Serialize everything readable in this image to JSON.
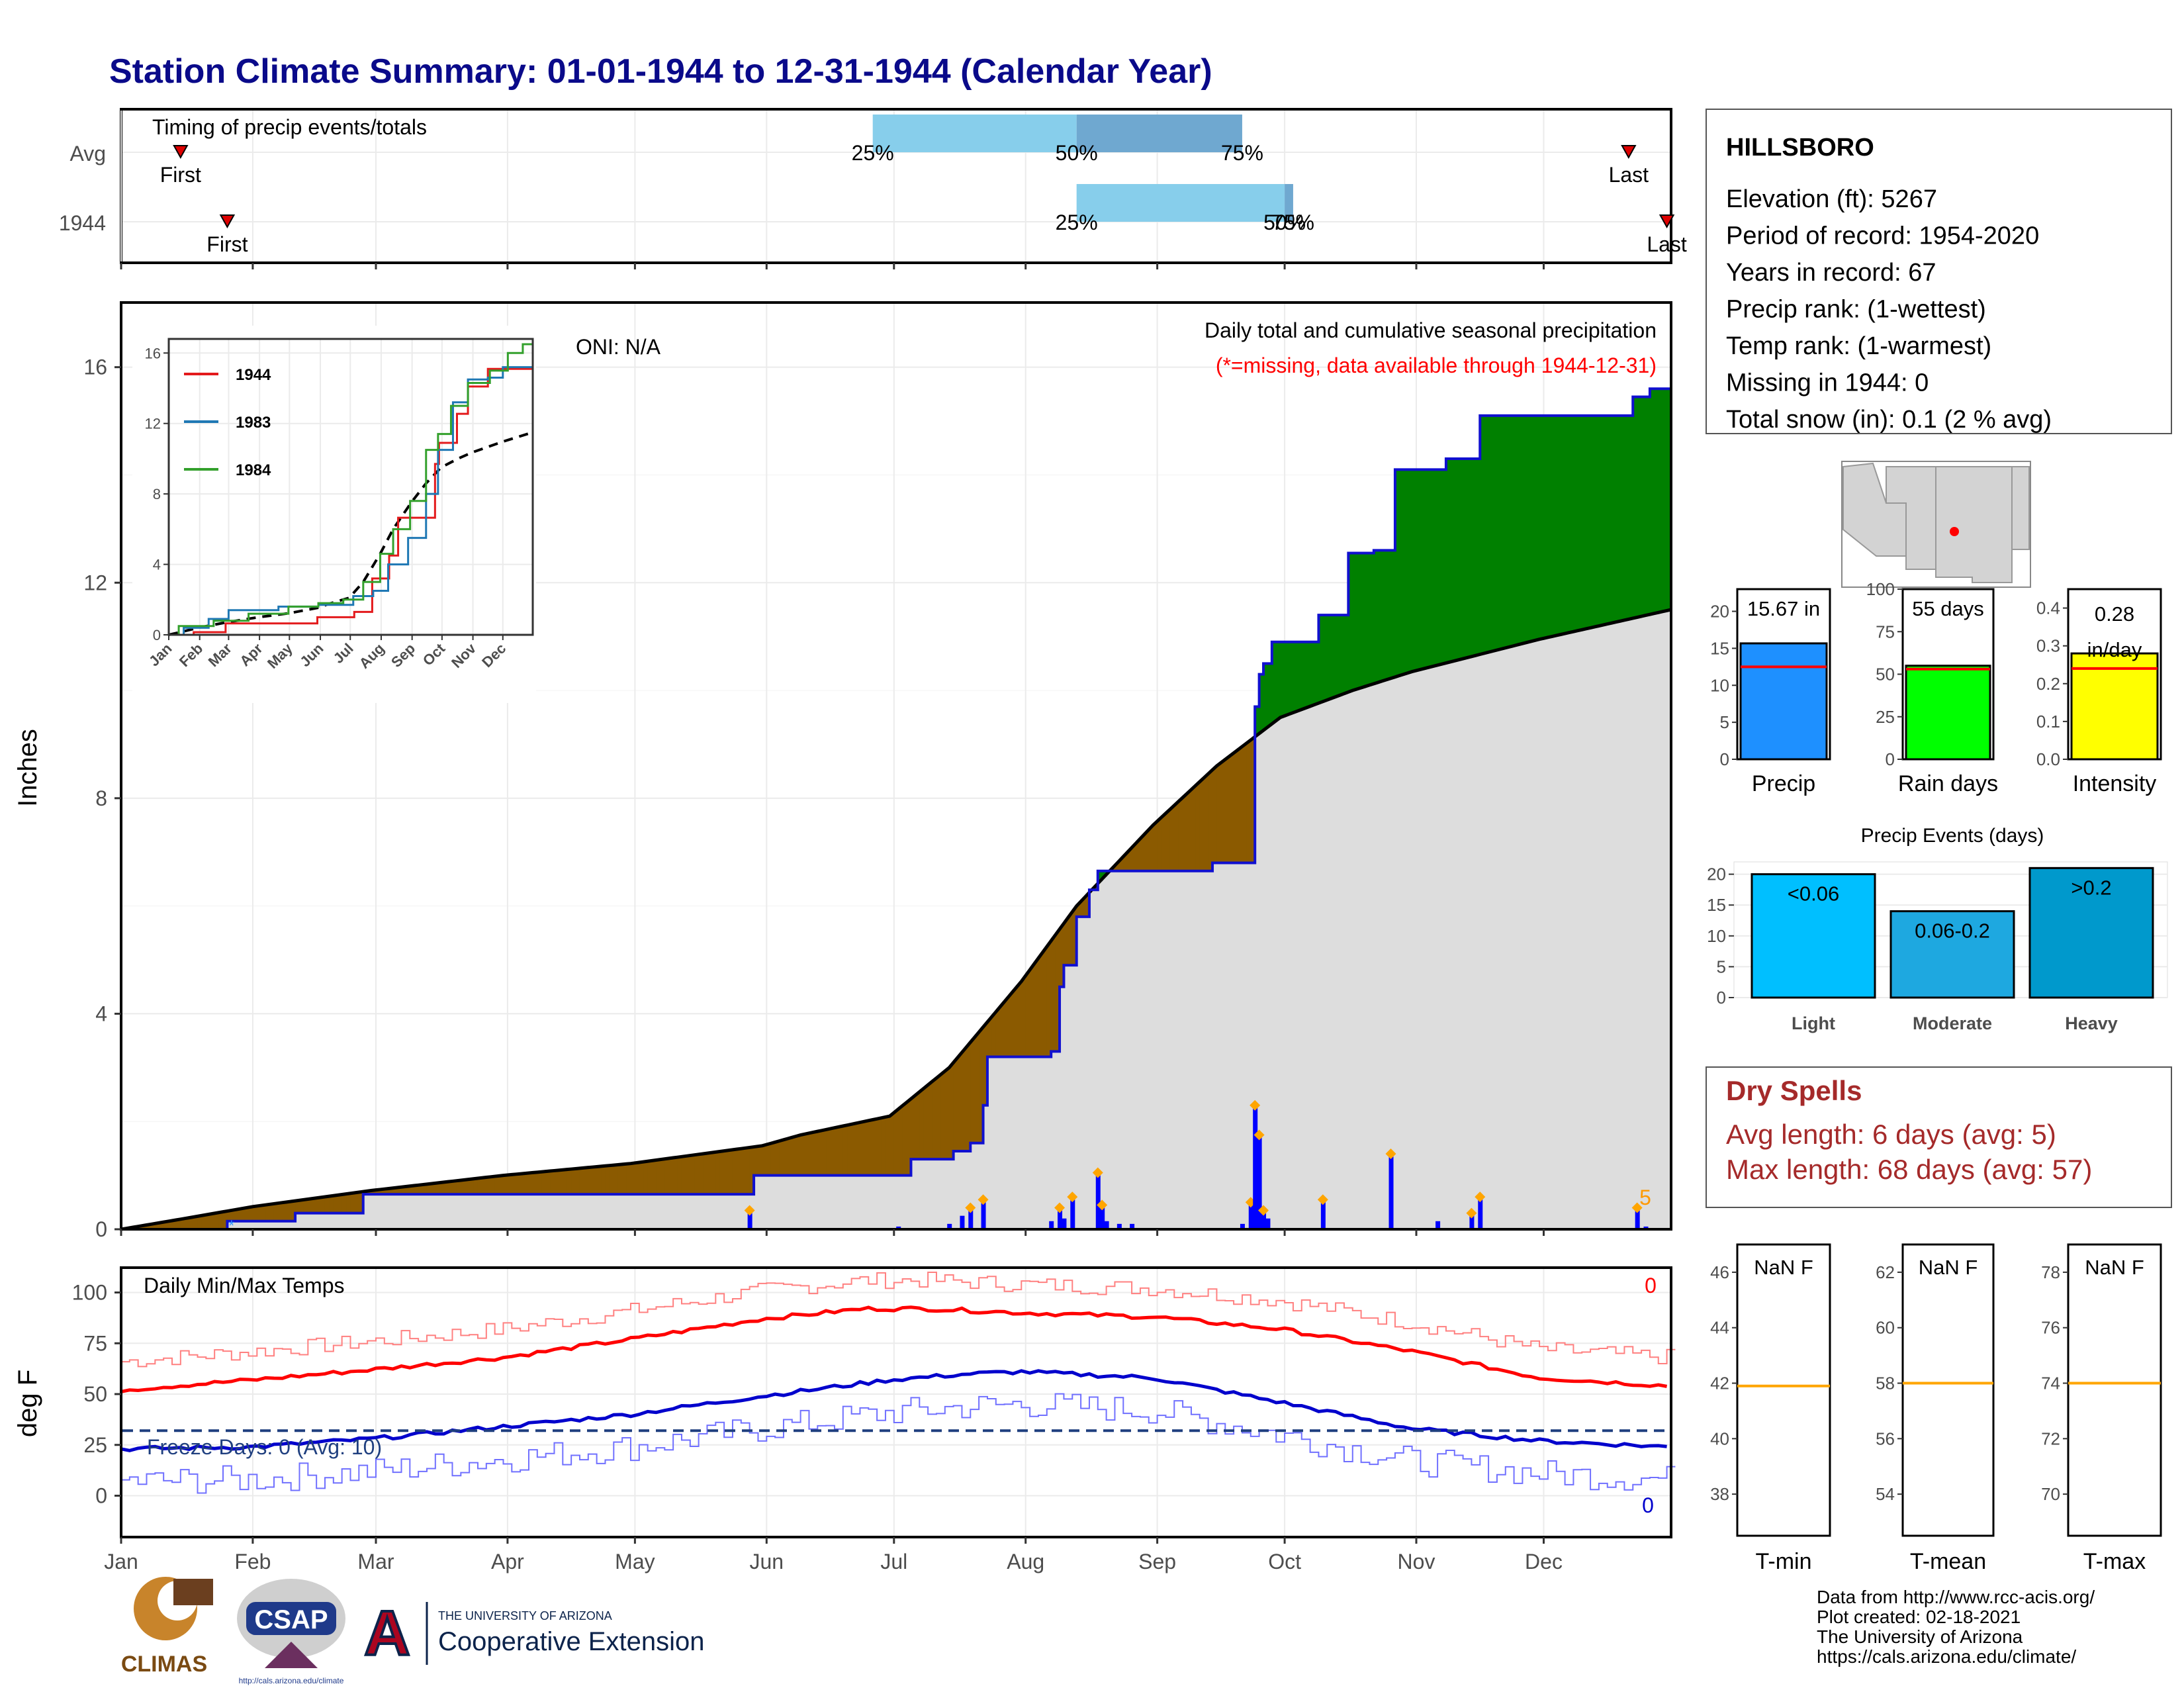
{
  "title": "Station Climate Summary: 01-01-1944 to 12-31-1944 (Calendar Year)",
  "colors": {
    "title": "#0a0a8a",
    "cumulative": "#1010d0",
    "above_avg": "#008000",
    "below_avg": "#8b5a00",
    "normal": "#dddddd",
    "tmax": "#ff0000",
    "tmin": "#0000cc",
    "freeze": "#1f3f7f",
    "dry": "#a52a2a"
  },
  "timing": {
    "title": "Timing of precip events/totals",
    "rows": [
      "Avg",
      "1944"
    ],
    "avg": {
      "first": "First",
      "last": "Last",
      "q25": "25%",
      "q50": "50%",
      "q75": "75%",
      "first_doy": 14,
      "last_doy": 355,
      "q25_doy": 177,
      "q50_doy": 225,
      "q75_doy": 264
    },
    "y1944": {
      "first": "First",
      "last": "Last",
      "q25": "25%",
      "q50": "50%",
      "q75": "75%",
      "first_doy": 25,
      "last_doy": 364,
      "q25_doy": 225,
      "q50_doy": 274,
      "q75_doy": 276
    }
  },
  "precip_panel": {
    "ylabel": "Inches",
    "oni": "ONI: N/A",
    "header1": "Daily total and cumulative seasonal precipitation",
    "header2": "(*=missing, data available through 1944-12-31)",
    "top_right_count": "5",
    "yticks": [
      "0",
      "4",
      "8",
      "12",
      "16"
    ]
  },
  "months": [
    "Jan",
    "Feb",
    "Mar",
    "Apr",
    "May",
    "Jun",
    "Jul",
    "Aug",
    "Sep",
    "Oct",
    "Nov",
    "Dec"
  ],
  "inset": {
    "legend": [
      "1944",
      "1983",
      "1984"
    ],
    "legend_colors": [
      "#e31a1c",
      "#1f78b4",
      "#33a02c"
    ],
    "yticks": [
      "0",
      "4",
      "8",
      "12",
      "16"
    ]
  },
  "temp_panel": {
    "ylabel": "deg F",
    "title": "Daily Min/Max Temps",
    "freeze": "Freeze Days: 0 (Avg: 10)",
    "max_count": "0",
    "min_count": "0",
    "yticks": [
      "0",
      "25",
      "50",
      "75",
      "100"
    ]
  },
  "station": {
    "name": "HILLSBORO",
    "lines": [
      "Elevation (ft): 5267",
      "Period of record: 1954-2020",
      "Years in record: 67",
      "Precip rank:  (1-wettest)",
      "Temp rank:  (1-warmest)",
      "Missing in 1944: 0",
      "Total snow (in): 0.1 (2 % avg)"
    ]
  },
  "summary_bars": [
    {
      "label": "Precip",
      "value_text": "15.67 in",
      "value": 15.67,
      "avg": 12.5,
      "ymax": 23,
      "ticks": [
        "0",
        "5",
        "10",
        "15",
        "20"
      ],
      "color": "#1e90ff"
    },
    {
      "label": "Rain days",
      "value_text": "55 days",
      "value": 55,
      "avg": 53,
      "ymax": 100,
      "ticks": [
        "0",
        "25",
        "50",
        "75",
        "100"
      ],
      "color": "#00ff00"
    },
    {
      "label": "Intensity",
      "value_text": "0.28 in/day",
      "value": 0.28,
      "avg": 0.24,
      "ymax": 0.45,
      "ticks": [
        "0.0",
        "0.1",
        "0.2",
        "0.3",
        "0.4"
      ],
      "color": "#ffff00"
    }
  ],
  "events": {
    "title": "Precip Events (days)",
    "ticks": [
      "0",
      "5",
      "10",
      "15",
      "20"
    ],
    "bars": [
      {
        "cat": "Light",
        "label": "<0.06",
        "value": 20,
        "color": "#00bfff"
      },
      {
        "cat": "Moderate",
        "label": "0.06-0.2",
        "value": 14,
        "color": "#1ea8e0"
      },
      {
        "cat": "Heavy",
        "label": ">0.2",
        "value": 21,
        "color": "#0099cc"
      }
    ]
  },
  "dry_spells": {
    "title": "Dry Spells",
    "avg": "Avg length: 6 days (avg: 5)",
    "max": "Max length: 68 days (avg: 57)"
  },
  "temp_boxes": [
    {
      "label": "T-min",
      "value": "NaN F",
      "ticks": [
        "38",
        "40",
        "42",
        "44",
        "46"
      ],
      "line": 41.9,
      "min": 36.5,
      "max": 47
    },
    {
      "label": "T-mean",
      "value": "NaN F",
      "ticks": [
        "54",
        "56",
        "58",
        "60",
        "62"
      ],
      "line": 58,
      "min": 52.5,
      "max": 63
    },
    {
      "label": "T-max",
      "value": "NaN F",
      "ticks": [
        "70",
        "72",
        "74",
        "76",
        "78"
      ],
      "line": 74,
      "min": 68.5,
      "max": 79
    }
  ],
  "footer": [
    "Data from http://www.rcc-acis.org/",
    "Plot created: 02-18-2021",
    "The University of Arizona",
    "https://cals.arizona.edu/climate/"
  ],
  "logos": {
    "climas": "CLIMAS",
    "csap": "CSAP",
    "csap_url": "http://cals.arizona.edu/climate",
    "ua_small": "THE UNIVERSITY OF ARIZONA",
    "ua_big": "Cooperative Extension",
    "ua_letter": "A"
  },
  "chart_data": {
    "type": "area",
    "title": "Station Climate Summary: 01-01-1944 to 12-31-1944 (Calendar Year)",
    "ylabel": "Inches",
    "ylim": [
      0,
      17.2
    ],
    "cumulative_1944": [
      [
        0,
        0
      ],
      [
        24,
        0
      ],
      [
        25,
        0.15
      ],
      [
        40,
        0.15
      ],
      [
        41,
        0.3
      ],
      [
        56,
        0.3
      ],
      [
        57,
        0.65
      ],
      [
        148,
        0.65
      ],
      [
        149,
        1.0
      ],
      [
        185,
        1.0
      ],
      [
        186,
        1.3
      ],
      [
        195,
        1.3
      ],
      [
        196,
        1.45
      ],
      [
        200,
        1.6
      ],
      [
        203,
        2.3
      ],
      [
        204,
        3.2
      ],
      [
        215,
        3.2
      ],
      [
        219,
        3.3
      ],
      [
        221,
        4.5
      ],
      [
        222,
        4.9
      ],
      [
        225,
        5.8
      ],
      [
        228,
        6.3
      ],
      [
        230,
        6.65
      ],
      [
        255,
        6.65
      ],
      [
        257,
        6.8
      ],
      [
        266,
        6.8
      ],
      [
        267,
        9.7
      ],
      [
        268,
        10.3
      ],
      [
        269,
        10.5
      ],
      [
        271,
        10.9
      ],
      [
        280,
        10.9
      ],
      [
        282,
        11.4
      ],
      [
        287,
        11.4
      ],
      [
        289,
        12.55
      ],
      [
        295,
        12.6
      ],
      [
        299,
        12.6
      ],
      [
        300,
        14.1
      ],
      [
        311,
        14.1
      ],
      [
        312,
        14.3
      ],
      [
        318,
        14.3
      ],
      [
        320,
        15.1
      ],
      [
        355,
        15.1
      ],
      [
        356,
        15.45
      ],
      [
        360,
        15.6
      ],
      [
        365,
        15.67
      ]
    ],
    "cumulative_avg": [
      [
        0,
        0
      ],
      [
        15,
        0.2
      ],
      [
        31,
        0.42
      ],
      [
        59,
        0.72
      ],
      [
        90,
        1.0
      ],
      [
        120,
        1.22
      ],
      [
        151,
        1.55
      ],
      [
        160,
        1.75
      ],
      [
        181,
        2.1
      ],
      [
        195,
        3.0
      ],
      [
        212,
        4.6
      ],
      [
        225,
        6.0
      ],
      [
        243,
        7.5
      ],
      [
        258,
        8.6
      ],
      [
        273,
        9.5
      ],
      [
        290,
        10.0
      ],
      [
        304,
        10.35
      ],
      [
        334,
        10.95
      ],
      [
        365,
        11.5
      ]
    ],
    "daily_precip": [
      [
        148,
        0.35
      ],
      [
        183,
        0.05
      ],
      [
        195,
        0.1
      ],
      [
        198,
        0.25
      ],
      [
        200,
        0.4
      ],
      [
        203,
        0.55
      ],
      [
        219,
        0.15
      ],
      [
        221,
        0.4
      ],
      [
        222,
        0.2
      ],
      [
        224,
        0.6
      ],
      [
        230,
        1.05
      ],
      [
        231,
        0.45
      ],
      [
        232,
        0.15
      ],
      [
        235,
        0.1
      ],
      [
        238,
        0.1
      ],
      [
        264,
        0.1
      ],
      [
        266,
        0.5
      ],
      [
        267,
        2.3
      ],
      [
        268,
        1.75
      ],
      [
        269,
        0.35
      ],
      [
        270,
        0.2
      ],
      [
        283,
        0.55
      ],
      [
        299,
        1.4
      ],
      [
        310,
        0.15
      ],
      [
        318,
        0.3
      ],
      [
        320,
        0.6
      ],
      [
        357,
        0.4
      ],
      [
        359,
        0.05
      ]
    ],
    "inset_series": [
      {
        "name": "1944",
        "points": [
          [
            0,
            0
          ],
          [
            25,
            0.15
          ],
          [
            57,
            0.65
          ],
          [
            149,
            1.0
          ],
          [
            186,
            1.3
          ],
          [
            204,
            3.2
          ],
          [
            221,
            4.5
          ],
          [
            230,
            6.65
          ],
          [
            267,
            9.7
          ],
          [
            271,
            10.9
          ],
          [
            289,
            12.55
          ],
          [
            300,
            14.1
          ],
          [
            320,
            15.1
          ],
          [
            365,
            15.67
          ]
        ]
      },
      {
        "name": "1983",
        "points": [
          [
            0,
            0
          ],
          [
            15,
            0.4
          ],
          [
            40,
            0.9
          ],
          [
            60,
            1.4
          ],
          [
            110,
            1.6
          ],
          [
            150,
            1.7
          ],
          [
            185,
            2.2
          ],
          [
            205,
            2.5
          ],
          [
            220,
            4.0
          ],
          [
            240,
            5.5
          ],
          [
            258,
            8.0
          ],
          [
            270,
            10.5
          ],
          [
            285,
            13.2
          ],
          [
            300,
            14.5
          ],
          [
            320,
            14.6
          ],
          [
            335,
            15.2
          ],
          [
            365,
            15.9
          ]
        ]
      },
      {
        "name": "1984",
        "points": [
          [
            0,
            0
          ],
          [
            10,
            0.5
          ],
          [
            45,
            0.8
          ],
          [
            80,
            1.2
          ],
          [
            120,
            1.6
          ],
          [
            150,
            1.8
          ],
          [
            175,
            2.0
          ],
          [
            195,
            3.0
          ],
          [
            212,
            4.6
          ],
          [
            225,
            6.0
          ],
          [
            242,
            7.6
          ],
          [
            258,
            10.5
          ],
          [
            270,
            11.4
          ],
          [
            283,
            13.0
          ],
          [
            300,
            14.3
          ],
          [
            322,
            15.0
          ],
          [
            340,
            16.0
          ],
          [
            355,
            16.5
          ],
          [
            365,
            16.8
          ]
        ]
      }
    ],
    "tmax_avg": [
      [
        0,
        52
      ],
      [
        31,
        57
      ],
      [
        59,
        62
      ],
      [
        90,
        68
      ],
      [
        120,
        77
      ],
      [
        151,
        87
      ],
      [
        175,
        92
      ],
      [
        190,
        92
      ],
      [
        212,
        90
      ],
      [
        243,
        88
      ],
      [
        273,
        82
      ],
      [
        304,
        71
      ],
      [
        334,
        58
      ],
      [
        365,
        54
      ]
    ],
    "tmin_avg": [
      [
        0,
        23
      ],
      [
        31,
        24
      ],
      [
        59,
        28
      ],
      [
        90,
        34
      ],
      [
        120,
        40
      ],
      [
        151,
        49
      ],
      [
        181,
        57
      ],
      [
        200,
        60
      ],
      [
        212,
        61
      ],
      [
        243,
        58
      ],
      [
        273,
        46
      ],
      [
        304,
        33
      ],
      [
        334,
        27
      ],
      [
        365,
        24
      ]
    ]
  }
}
